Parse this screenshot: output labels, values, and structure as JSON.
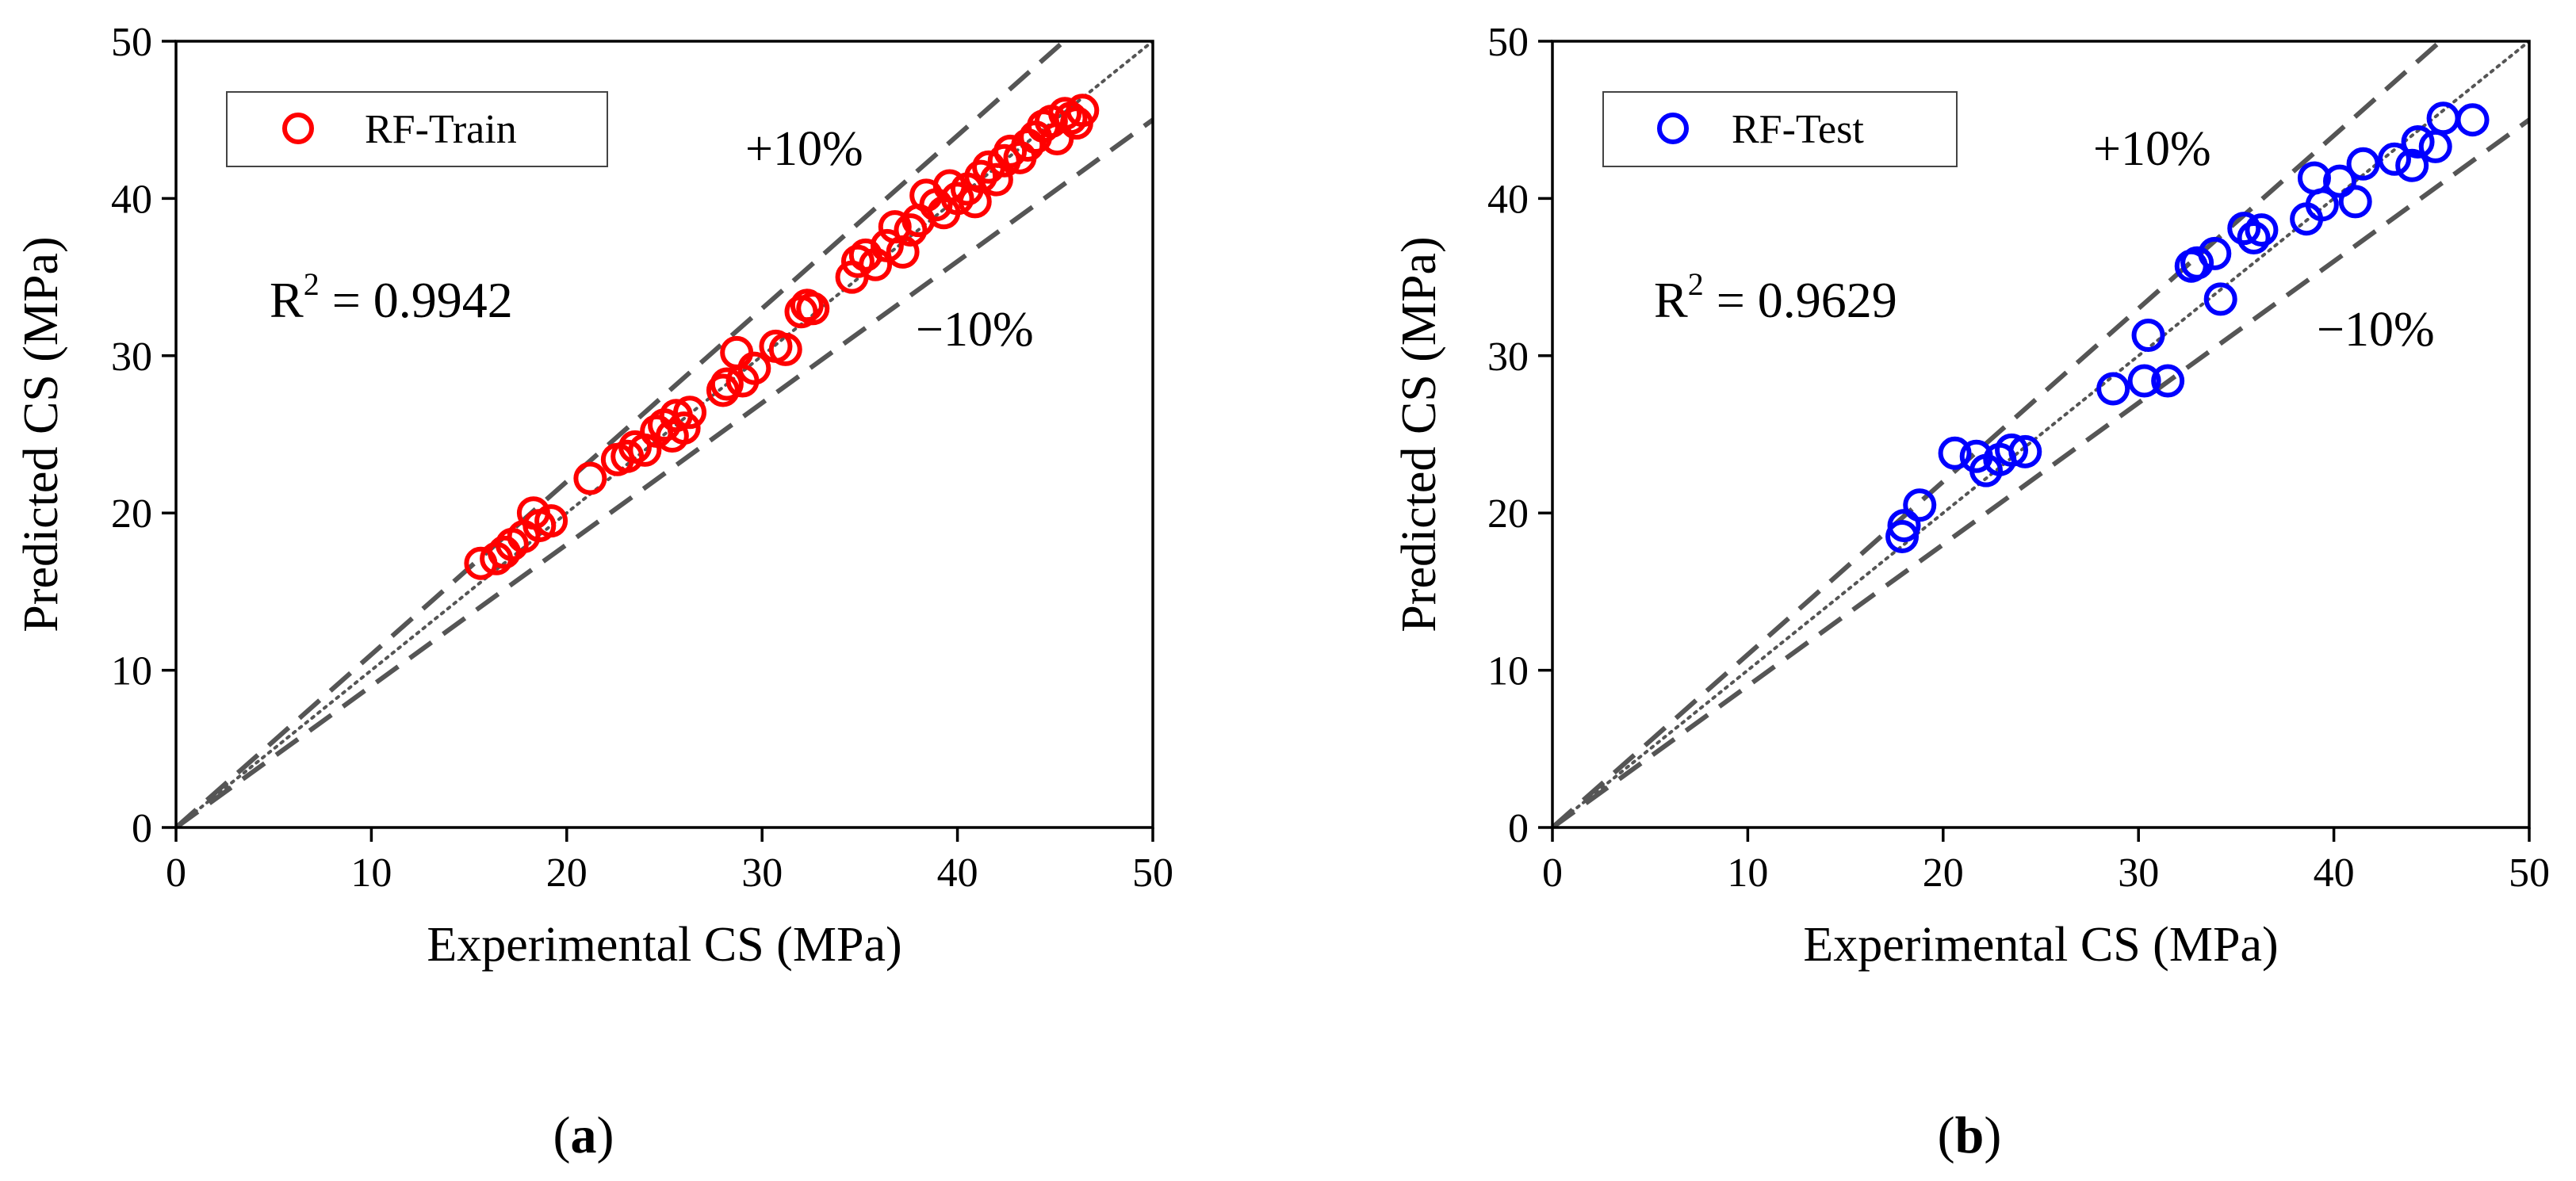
{
  "chart_data": [
    {
      "type": "scatter",
      "panel_label": "a",
      "xlabel": "Experimental CS (MPa)",
      "ylabel": "Predicted CS (MPa)",
      "xlim": [
        0,
        50
      ],
      "ylim": [
        0,
        50
      ],
      "xticks": [
        0,
        10,
        20,
        30,
        40,
        50
      ],
      "yticks": [
        0,
        10,
        20,
        30,
        40,
        50
      ],
      "legend": {
        "label": "RF-Train",
        "placement": "top-left"
      },
      "marker_color": "#ff0000",
      "r2_label": "R",
      "r2_sup": "2",
      "r2_value": " = 0.9942",
      "upper_band_label": "+10%",
      "lower_band_label": "−10%",
      "reference_lines": [
        {
          "name": "identity",
          "slope": 1.0,
          "style": "dotted"
        },
        {
          "name": "plus-10",
          "slope": 1.1,
          "style": "dashed"
        },
        {
          "name": "minus-10",
          "slope": 0.9,
          "style": "dashed"
        }
      ],
      "series": [
        {
          "name": "RF-Train",
          "points": [
            [
              15.6,
              16.8
            ],
            [
              16.4,
              17.1
            ],
            [
              16.8,
              17.5
            ],
            [
              17.2,
              18.0
            ],
            [
              17.8,
              18.5
            ],
            [
              18.3,
              20.0
            ],
            [
              18.6,
              19.2
            ],
            [
              19.2,
              19.5
            ],
            [
              21.2,
              22.2
            ],
            [
              22.6,
              23.4
            ],
            [
              23.1,
              23.6
            ],
            [
              23.5,
              24.2
            ],
            [
              24.0,
              24.0
            ],
            [
              24.6,
              25.2
            ],
            [
              25.0,
              25.6
            ],
            [
              25.4,
              24.9
            ],
            [
              25.6,
              26.2
            ],
            [
              26.0,
              25.4
            ],
            [
              26.3,
              26.4
            ],
            [
              28.0,
              27.8
            ],
            [
              28.2,
              28.2
            ],
            [
              28.7,
              30.2
            ],
            [
              29.0,
              28.4
            ],
            [
              29.6,
              29.2
            ],
            [
              30.7,
              30.6
            ],
            [
              31.2,
              30.4
            ],
            [
              32.0,
              32.8
            ],
            [
              32.3,
              33.2
            ],
            [
              32.6,
              33.0
            ],
            [
              34.6,
              35.0
            ],
            [
              34.9,
              36.0
            ],
            [
              35.3,
              36.4
            ],
            [
              35.8,
              35.8
            ],
            [
              36.4,
              37.0
            ],
            [
              36.8,
              38.2
            ],
            [
              37.2,
              36.6
            ],
            [
              37.6,
              38.0
            ],
            [
              38.0,
              38.6
            ],
            [
              38.4,
              40.2
            ],
            [
              38.9,
              39.6
            ],
            [
              39.3,
              39.1
            ],
            [
              39.6,
              40.8
            ],
            [
              40.0,
              40.0
            ],
            [
              40.5,
              40.6
            ],
            [
              40.9,
              39.8
            ],
            [
              41.2,
              41.4
            ],
            [
              41.6,
              42.0
            ],
            [
              42.0,
              41.2
            ],
            [
              42.4,
              42.4
            ],
            [
              42.7,
              43.0
            ],
            [
              43.2,
              42.6
            ],
            [
              43.6,
              43.4
            ],
            [
              44.0,
              43.9
            ],
            [
              44.4,
              44.6
            ],
            [
              44.8,
              44.9
            ],
            [
              45.1,
              43.8
            ],
            [
              45.5,
              45.4
            ],
            [
              45.8,
              45.1
            ],
            [
              46.1,
              44.8
            ],
            [
              46.4,
              45.6
            ]
          ]
        }
      ]
    },
    {
      "type": "scatter",
      "panel_label": "b",
      "xlabel": "Experimental CS (MPa)",
      "ylabel": "Predicted CS (MPa)",
      "xlim": [
        0,
        50
      ],
      "ylim": [
        0,
        50
      ],
      "xticks": [
        0,
        10,
        20,
        30,
        40,
        50
      ],
      "yticks": [
        0,
        10,
        20,
        30,
        40,
        50
      ],
      "legend": {
        "label": "RF-Test",
        "placement": "top-left"
      },
      "marker_color": "#0000ff",
      "r2_label": "R",
      "r2_sup": "2",
      "r2_value": " = 0.9629",
      "upper_band_label": "+10%",
      "lower_band_label": "−10%",
      "reference_lines": [
        {
          "name": "identity",
          "slope": 1.0,
          "style": "dotted"
        },
        {
          "name": "plus-10",
          "slope": 1.1,
          "style": "dashed"
        },
        {
          "name": "minus-10",
          "slope": 0.9,
          "style": "dashed"
        }
      ],
      "series": [
        {
          "name": "RF-Test",
          "points": [
            [
              17.9,
              18.5
            ],
            [
              18.0,
              19.2
            ],
            [
              18.8,
              20.5
            ],
            [
              20.6,
              23.8
            ],
            [
              21.7,
              23.6
            ],
            [
              22.2,
              22.7
            ],
            [
              22.9,
              23.4
            ],
            [
              23.5,
              24.0
            ],
            [
              24.2,
              23.9
            ],
            [
              28.7,
              27.9
            ],
            [
              30.3,
              28.4
            ],
            [
              30.5,
              31.3
            ],
            [
              31.5,
              28.4
            ],
            [
              32.7,
              35.7
            ],
            [
              33.0,
              35.9
            ],
            [
              33.9,
              36.5
            ],
            [
              34.2,
              33.6
            ],
            [
              35.4,
              38.1
            ],
            [
              35.9,
              37.5
            ],
            [
              36.3,
              38.0
            ],
            [
              38.6,
              38.7
            ],
            [
              39.0,
              41.3
            ],
            [
              39.4,
              39.6
            ],
            [
              40.3,
              41.1
            ],
            [
              41.1,
              39.8
            ],
            [
              41.5,
              42.2
            ],
            [
              43.1,
              42.5
            ],
            [
              44.0,
              42.1
            ],
            [
              44.3,
              43.6
            ],
            [
              45.2,
              43.3
            ],
            [
              45.6,
              45.1
            ],
            [
              47.1,
              45.0
            ]
          ]
        }
      ]
    }
  ]
}
